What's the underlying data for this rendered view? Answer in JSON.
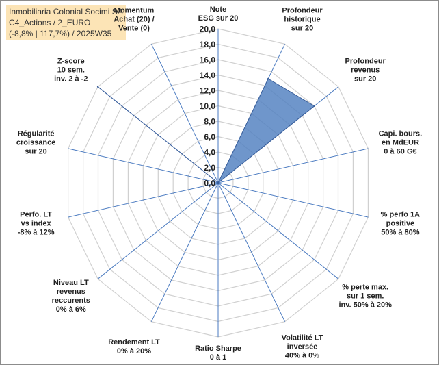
{
  "header": {
    "line1": "Inmobiliaria Colonial Socimi SA",
    "line2": "C4_Actions / 2_EURO",
    "line3": "(-8,8% | 117,7%) / 2025W35"
  },
  "colors": {
    "fill": "#4f7fbf",
    "stroke": "#3b5f9a",
    "grid": "#d0d0d0",
    "spoke": "#4a7ac0",
    "title_bg": "#fce4b6"
  },
  "chart_data": {
    "type": "radar",
    "title": "",
    "rlim": [
      0,
      20
    ],
    "r_ticks": [
      "0,0",
      "2,0",
      "4,0",
      "6,0",
      "8,0",
      "10,0",
      "12,0",
      "14,0",
      "16,0",
      "18,0",
      "20,0"
    ],
    "categories": [
      [
        "Note",
        "ESG sur 20"
      ],
      [
        "Profondeur",
        "historique",
        "sur 20"
      ],
      [
        "Profondeur",
        "revenus",
        "sur 20"
      ],
      [
        "Capi. bours.",
        "en MdEUR",
        "0 à 60 G€"
      ],
      [
        "% perfo 1A",
        "positive",
        "50% à 80%"
      ],
      [
        "% perte max.",
        "sur 1 sem.",
        "inv. 50% à 20%"
      ],
      [
        "Volatilité LT",
        "inversée",
        "40% à 0%"
      ],
      [
        "Ratio Sharpe",
        "0 à 1"
      ],
      [
        "Rendement LT",
        "0% à 20%"
      ],
      [
        "Niveau LT",
        "revenus",
        "reccurents",
        "0% à 6%"
      ],
      [
        "Perfo. LT",
        "vs index",
        "-8% à 12%"
      ],
      [
        "Régularité",
        "croissance",
        "sur 20"
      ],
      [
        "Z-score",
        "10 sem.",
        "inv. 2 à -2"
      ],
      [
        "Momentum",
        "Achat (20) /",
        "Vente (0)"
      ]
    ],
    "values": [
      0,
      15,
      16,
      0,
      0,
      0,
      0,
      0,
      0,
      0,
      0,
      0,
      20,
      0
    ]
  }
}
